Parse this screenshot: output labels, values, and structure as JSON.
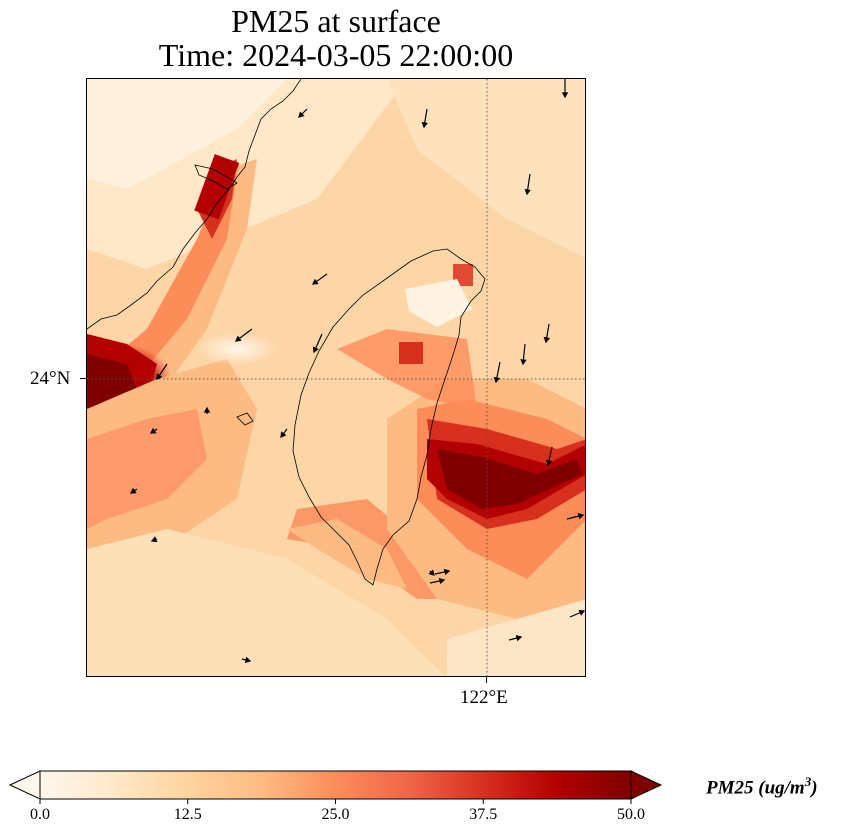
{
  "title": {
    "line1": "PM25 at surface",
    "line2": "Time: 2024-03-05 22:00:00"
  },
  "map": {
    "lat_tick_label": "24°N",
    "lon_tick_label": "122°E",
    "lat_gridline": 24,
    "lon_gridline": 122,
    "gridline_style": "dotted"
  },
  "colorbar": {
    "colormap": "OrRd",
    "vmin": 0.0,
    "vmax": 50.0,
    "extend": "both",
    "ticks": [
      "0.0",
      "12.5",
      "25.0",
      "37.5",
      "50.0"
    ],
    "label_main": "PM25 (ug/m",
    "label_exp": "3",
    "label_close": ")",
    "colors": [
      "#fff7ec",
      "#fee8c8",
      "#fdd49e",
      "#fdbb84",
      "#fc8d59",
      "#ef6548",
      "#d7301f",
      "#b30000",
      "#7f0000"
    ]
  }
}
